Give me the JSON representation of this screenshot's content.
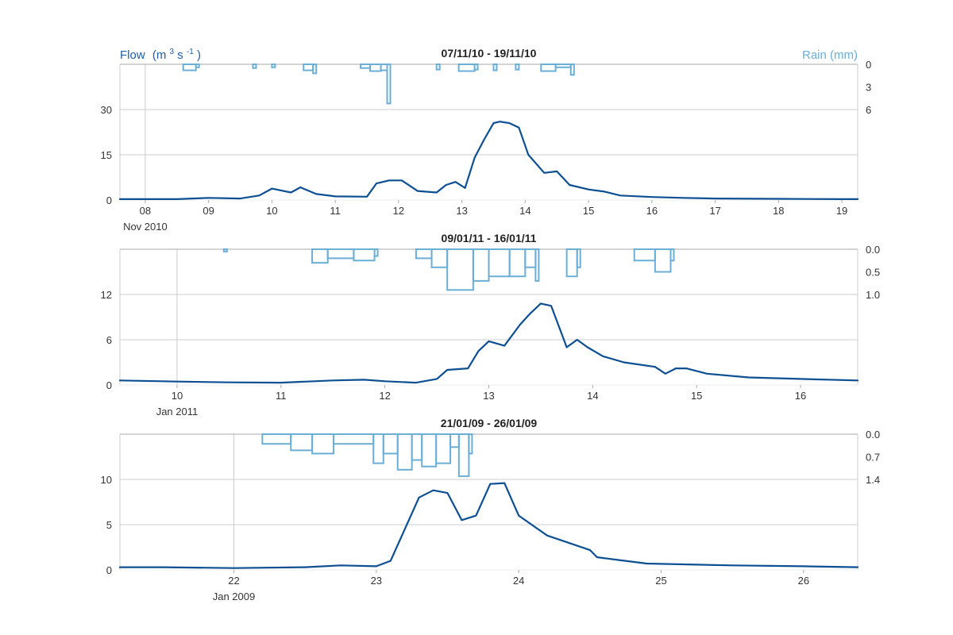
{
  "axis_titles": {
    "flow": "Flow",
    "flow_unit_base": "(m",
    "flow_unit_exp1": "3",
    "flow_unit_mid": " s",
    "flow_unit_exp2": "-1",
    "flow_unit_end": " )",
    "rain": "Rain (mm)"
  },
  "colors": {
    "flow": "#0d4f93",
    "rain": "#6baed6",
    "grid": "#cccccc",
    "axis": "#aaaaaa",
    "flow_label": "#1f5ea8",
    "rain_label": "#6baed6"
  },
  "chart_data": [
    {
      "type": "line",
      "title": "07/11/10 - 19/11/10",
      "x_unit": "days (Nov 2010)",
      "xlim": [
        7.6,
        19.25
      ],
      "xticks": [
        8,
        9,
        10,
        11,
        12,
        13,
        14,
        15,
        16,
        17,
        18,
        19
      ],
      "xtick_labels": [
        "08",
        "09",
        "10",
        "11",
        "12",
        "13",
        "14",
        "15",
        "16",
        "17",
        "18",
        "19"
      ],
      "period_label": "Nov 2010",
      "period_x": 8.0,
      "flow_ylim": [
        0,
        30
      ],
      "flow_yticks": [
        0,
        15,
        30
      ],
      "rain_ymax": 6,
      "rain_yticks": [
        0,
        3,
        6
      ],
      "flow": {
        "name": "Flow",
        "x": [
          7.6,
          8.5,
          9.0,
          9.5,
          9.8,
          10.0,
          10.3,
          10.45,
          10.7,
          11.0,
          11.5,
          11.65,
          11.85,
          12.05,
          12.3,
          12.6,
          12.75,
          12.9,
          13.05,
          13.2,
          13.35,
          13.5,
          13.6,
          13.75,
          13.9,
          14.05,
          14.3,
          14.5,
          14.7,
          15.0,
          15.25,
          15.5,
          16.0,
          16.5,
          17.0,
          18.0,
          19.0,
          19.25
        ],
        "y": [
          0.3,
          0.3,
          0.7,
          0.5,
          1.5,
          3.8,
          2.5,
          4.2,
          2.0,
          1.2,
          1.1,
          5.5,
          6.5,
          6.5,
          3.0,
          2.5,
          5.0,
          6.0,
          4.0,
          14.0,
          20.0,
          25.5,
          26.0,
          25.5,
          24.0,
          15.0,
          9.0,
          9.5,
          5.0,
          3.5,
          2.8,
          1.5,
          1.0,
          0.7,
          0.5,
          0.4,
          0.3,
          0.3
        ]
      },
      "rain": {
        "name": "Rain",
        "x": [
          8.6,
          8.8,
          9.7,
          10.0,
          10.5,
          10.65,
          11.4,
          11.55,
          11.72,
          11.82,
          12.6,
          12.95,
          13.2,
          13.5,
          13.85,
          14.25,
          14.48,
          14.72
        ],
        "y": [
          0.8,
          0.4,
          0.5,
          0.4,
          0.8,
          1.2,
          0.5,
          0.9,
          0.8,
          5.2,
          0.7,
          0.9,
          0.7,
          0.8,
          0.7,
          0.9,
          0.4,
          1.4
        ]
      }
    },
    {
      "type": "line",
      "title": "09/01/11 - 16/01/11",
      "x_unit": "days (Jan 2011)",
      "xlim": [
        9.45,
        16.55
      ],
      "xticks": [
        10,
        11,
        12,
        13,
        14,
        15,
        16
      ],
      "xtick_labels": [
        "10",
        "11",
        "12",
        "13",
        "14",
        "15",
        "16"
      ],
      "period_label": "Jan 2011",
      "period_x": 10.0,
      "flow_ylim": [
        0,
        12
      ],
      "flow_yticks": [
        0,
        6,
        12
      ],
      "rain_ymax": 1.0,
      "rain_yticks": [
        0.0,
        0.5,
        1.0
      ],
      "rain_ytick_labels": [
        "0.0",
        "0.5",
        "1.0"
      ],
      "flow": {
        "name": "Flow",
        "x": [
          9.45,
          10.0,
          10.5,
          11.0,
          11.5,
          11.8,
          12.0,
          12.3,
          12.5,
          12.6,
          12.8,
          12.9,
          13.0,
          13.15,
          13.3,
          13.4,
          13.5,
          13.6,
          13.75,
          13.85,
          13.95,
          14.1,
          14.3,
          14.6,
          14.7,
          14.8,
          14.9,
          15.1,
          15.5,
          16.0,
          16.55
        ],
        "y": [
          0.6,
          0.45,
          0.35,
          0.3,
          0.6,
          0.7,
          0.5,
          0.3,
          0.8,
          2.0,
          2.2,
          4.5,
          5.8,
          5.2,
          8.0,
          9.5,
          10.8,
          10.5,
          5.0,
          6.0,
          5.0,
          3.8,
          3.0,
          2.4,
          1.5,
          2.2,
          2.2,
          1.5,
          1.0,
          0.8,
          0.6
        ]
      },
      "rain": {
        "name": "Rain",
        "x": [
          10.45,
          11.3,
          11.45,
          11.7,
          11.9,
          12.3,
          12.45,
          12.6,
          12.85,
          13.0,
          13.2,
          13.35,
          13.45,
          13.75,
          13.85,
          14.4,
          14.6,
          14.75
        ],
        "y": [
          0.05,
          0.3,
          0.2,
          0.25,
          0.15,
          0.2,
          0.4,
          0.9,
          0.7,
          0.6,
          0.6,
          0.4,
          0.7,
          0.6,
          0.4,
          0.25,
          0.5,
          0.25
        ]
      }
    },
    {
      "type": "line",
      "title": "21/01/09 - 26/01/09",
      "x_unit": "days (Jan 2009)",
      "xlim": [
        21.2,
        26.38
      ],
      "xticks": [
        22,
        23,
        24,
        25,
        26
      ],
      "xtick_labels": [
        "22",
        "23",
        "24",
        "25",
        "26"
      ],
      "period_label": "Jan 2009",
      "period_x": 22.0,
      "flow_ylim": [
        0,
        10
      ],
      "flow_yticks": [
        0,
        5,
        10
      ],
      "rain_ymax": 1.4,
      "rain_yticks": [
        0.0,
        0.7,
        1.4
      ],
      "rain_ytick_labels": [
        "0.0",
        "0.7",
        "1.4"
      ],
      "flow": {
        "name": "Flow",
        "x": [
          21.2,
          21.5,
          22.0,
          22.5,
          22.75,
          23.0,
          23.1,
          23.2,
          23.3,
          23.4,
          23.5,
          23.6,
          23.7,
          23.8,
          23.9,
          24.0,
          24.2,
          24.5,
          24.55,
          24.7,
          24.9,
          25.5,
          26.0,
          26.38
        ],
        "y": [
          0.3,
          0.3,
          0.2,
          0.3,
          0.5,
          0.4,
          1.0,
          4.5,
          8.0,
          8.8,
          8.5,
          5.5,
          6.0,
          9.5,
          9.6,
          6.0,
          3.8,
          2.2,
          1.4,
          1.1,
          0.7,
          0.5,
          0.4,
          0.3
        ]
      },
      "rain": {
        "name": "Rain",
        "x": [
          22.2,
          22.4,
          22.55,
          22.7,
          22.98,
          23.05,
          23.15,
          23.25,
          23.32,
          23.42,
          23.52,
          23.58,
          23.65
        ],
        "y": [
          0.3,
          0.5,
          0.6,
          0.3,
          0.9,
          0.6,
          1.1,
          0.8,
          1.0,
          0.9,
          0.4,
          1.3,
          0.6
        ]
      }
    }
  ]
}
